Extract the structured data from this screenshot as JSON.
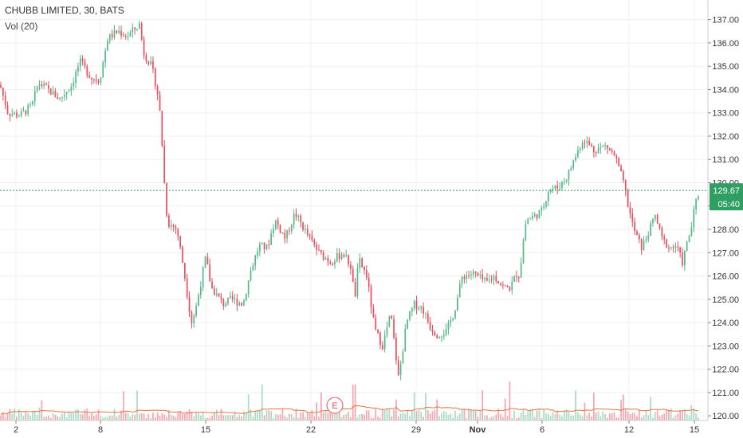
{
  "header": {
    "title": "CHUBB LIMITED, 30, BATS",
    "indicator": "Vol (20)"
  },
  "colors": {
    "up": "#53b987",
    "down": "#eb4d5c",
    "vol_up": "#a9dcc3",
    "vol_down": "#f5a6ae",
    "ma": "#e9743e",
    "price_line": "#2f9e62",
    "grid": "#edf0f3"
  },
  "chart_data": {
    "type": "candlestick",
    "symbol": "CHUBB LIMITED",
    "interval": "30",
    "exchange": "BATS",
    "ylim": [
      119.8,
      137.5
    ],
    "y_ticks": [
      120,
      121,
      122,
      123,
      124,
      125,
      126,
      127,
      128,
      129,
      130,
      131,
      132,
      133,
      134,
      135,
      136,
      137
    ],
    "x_ticks": [
      {
        "label": "2",
        "pos": 20,
        "bold": false
      },
      {
        "label": "8",
        "pos": 126,
        "bold": false
      },
      {
        "label": "15",
        "pos": 258,
        "bold": false
      },
      {
        "label": "22",
        "pos": 390,
        "bold": false
      },
      {
        "label": "29",
        "pos": 522,
        "bold": false
      },
      {
        "label": "Nov",
        "pos": 599,
        "bold": true
      },
      {
        "label": "6",
        "pos": 680,
        "bold": false
      },
      {
        "label": "12",
        "pos": 789,
        "bold": false
      },
      {
        "label": "15",
        "pos": 871,
        "bold": false
      }
    ],
    "price_path": [
      [
        0,
        134.2
      ],
      [
        10,
        133.0
      ],
      [
        25,
        132.9
      ],
      [
        40,
        133.3
      ],
      [
        48,
        134.3
      ],
      [
        60,
        134.0
      ],
      [
        75,
        133.6
      ],
      [
        90,
        134.2
      ],
      [
        100,
        135.2
      ],
      [
        115,
        134.5
      ],
      [
        125,
        134.4
      ],
      [
        135,
        136.2
      ],
      [
        148,
        136.5
      ],
      [
        160,
        136.3
      ],
      [
        175,
        136.8
      ],
      [
        180,
        135.6
      ],
      [
        190,
        135.0
      ],
      [
        197,
        134.0
      ],
      [
        202,
        132.6
      ],
      [
        205,
        130.5
      ],
      [
        210,
        128.3
      ],
      [
        222,
        128.0
      ],
      [
        230,
        126.4
      ],
      [
        240,
        124.0
      ],
      [
        245,
        124.5
      ],
      [
        258,
        126.8
      ],
      [
        265,
        125.5
      ],
      [
        280,
        124.8
      ],
      [
        290,
        125.0
      ],
      [
        305,
        124.8
      ],
      [
        315,
        126.3
      ],
      [
        325,
        127.3
      ],
      [
        335,
        127.2
      ],
      [
        345,
        128.4
      ],
      [
        358,
        127.6
      ],
      [
        370,
        128.7
      ],
      [
        385,
        127.8
      ],
      [
        400,
        127.0
      ],
      [
        415,
        126.6
      ],
      [
        430,
        127.0
      ],
      [
        440,
        126.4
      ],
      [
        445,
        125.0
      ],
      [
        450,
        126.7
      ],
      [
        460,
        126.0
      ],
      [
        470,
        123.7
      ],
      [
        480,
        123.0
      ],
      [
        490,
        124.4
      ],
      [
        500,
        121.6
      ],
      [
        510,
        124.0
      ],
      [
        520,
        124.8
      ],
      [
        530,
        124.6
      ],
      [
        540,
        123.8
      ],
      [
        548,
        123.5
      ],
      [
        560,
        123.6
      ],
      [
        570,
        124.5
      ],
      [
        580,
        126.0
      ],
      [
        595,
        126.1
      ],
      [
        610,
        125.7
      ],
      [
        620,
        126.0
      ],
      [
        632,
        125.5
      ],
      [
        640,
        125.5
      ],
      [
        648,
        126.1
      ],
      [
        652,
        126.0
      ],
      [
        655,
        127.2
      ],
      [
        660,
        128.4
      ],
      [
        672,
        128.6
      ],
      [
        680,
        128.8
      ],
      [
        688,
        129.7
      ],
      [
        700,
        129.8
      ],
      [
        712,
        130.3
      ],
      [
        720,
        131.0
      ],
      [
        732,
        131.9
      ],
      [
        745,
        131.4
      ],
      [
        760,
        131.6
      ],
      [
        772,
        131.1
      ],
      [
        782,
        130.0
      ],
      [
        788,
        129.0
      ],
      [
        795,
        128.0
      ],
      [
        805,
        127.2
      ],
      [
        815,
        128.0
      ],
      [
        822,
        128.6
      ],
      [
        830,
        127.6
      ],
      [
        840,
        127.2
      ],
      [
        848,
        127.3
      ],
      [
        856,
        126.6
      ],
      [
        862,
        127.4
      ],
      [
        868,
        128.2
      ],
      [
        872,
        129.1
      ],
      [
        878,
        129.67
      ]
    ],
    "last_price": "129.67",
    "countdown": "05:40",
    "annotations": [
      {
        "label": "E",
        "type": "earnings",
        "pos": 420
      }
    ]
  }
}
